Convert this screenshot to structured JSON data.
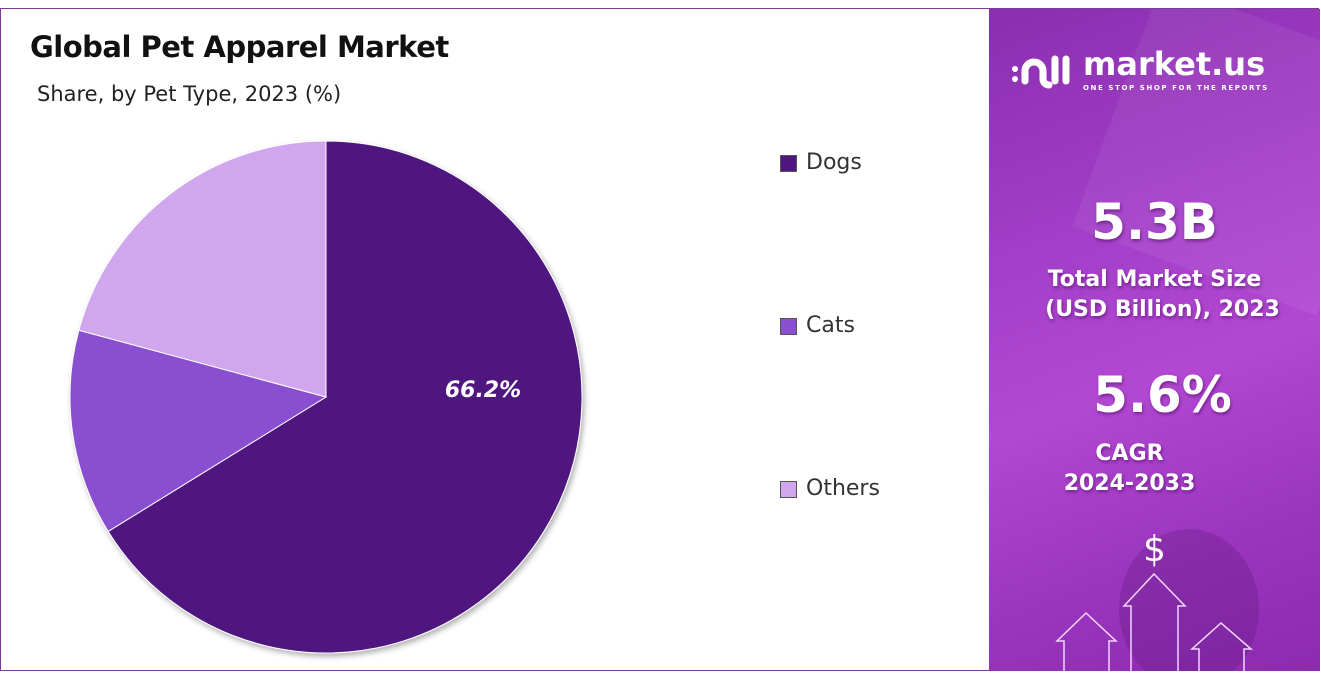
{
  "chart_data": {
    "type": "pie",
    "title": "Global Pet Apparel Market",
    "subtitle": "Share, by Pet Type, 2023 (%)",
    "categories": [
      "Dogs",
      "Cats",
      "Others"
    ],
    "values": [
      66.2,
      13.0,
      20.8
    ],
    "data_labels": [
      "66.2%",
      "",
      ""
    ],
    "colors": [
      "#4f1680",
      "#8a4fd0",
      "#d0a6ee"
    ],
    "legend_position": "right"
  },
  "panel": {
    "logo_name": "market.us",
    "logo_tagline": "ONE STOP SHOP FOR THE REPORTS",
    "market_size_value": "5.3B",
    "market_size_label_1": "Total Market Size",
    "market_size_label_2": "(USD Billion), 2023",
    "cagr_value": "5.6%",
    "cagr_label": "CAGR",
    "cagr_period": "2024-2033",
    "dollar_symbol": "$",
    "background_color": "#a43fc9"
  }
}
